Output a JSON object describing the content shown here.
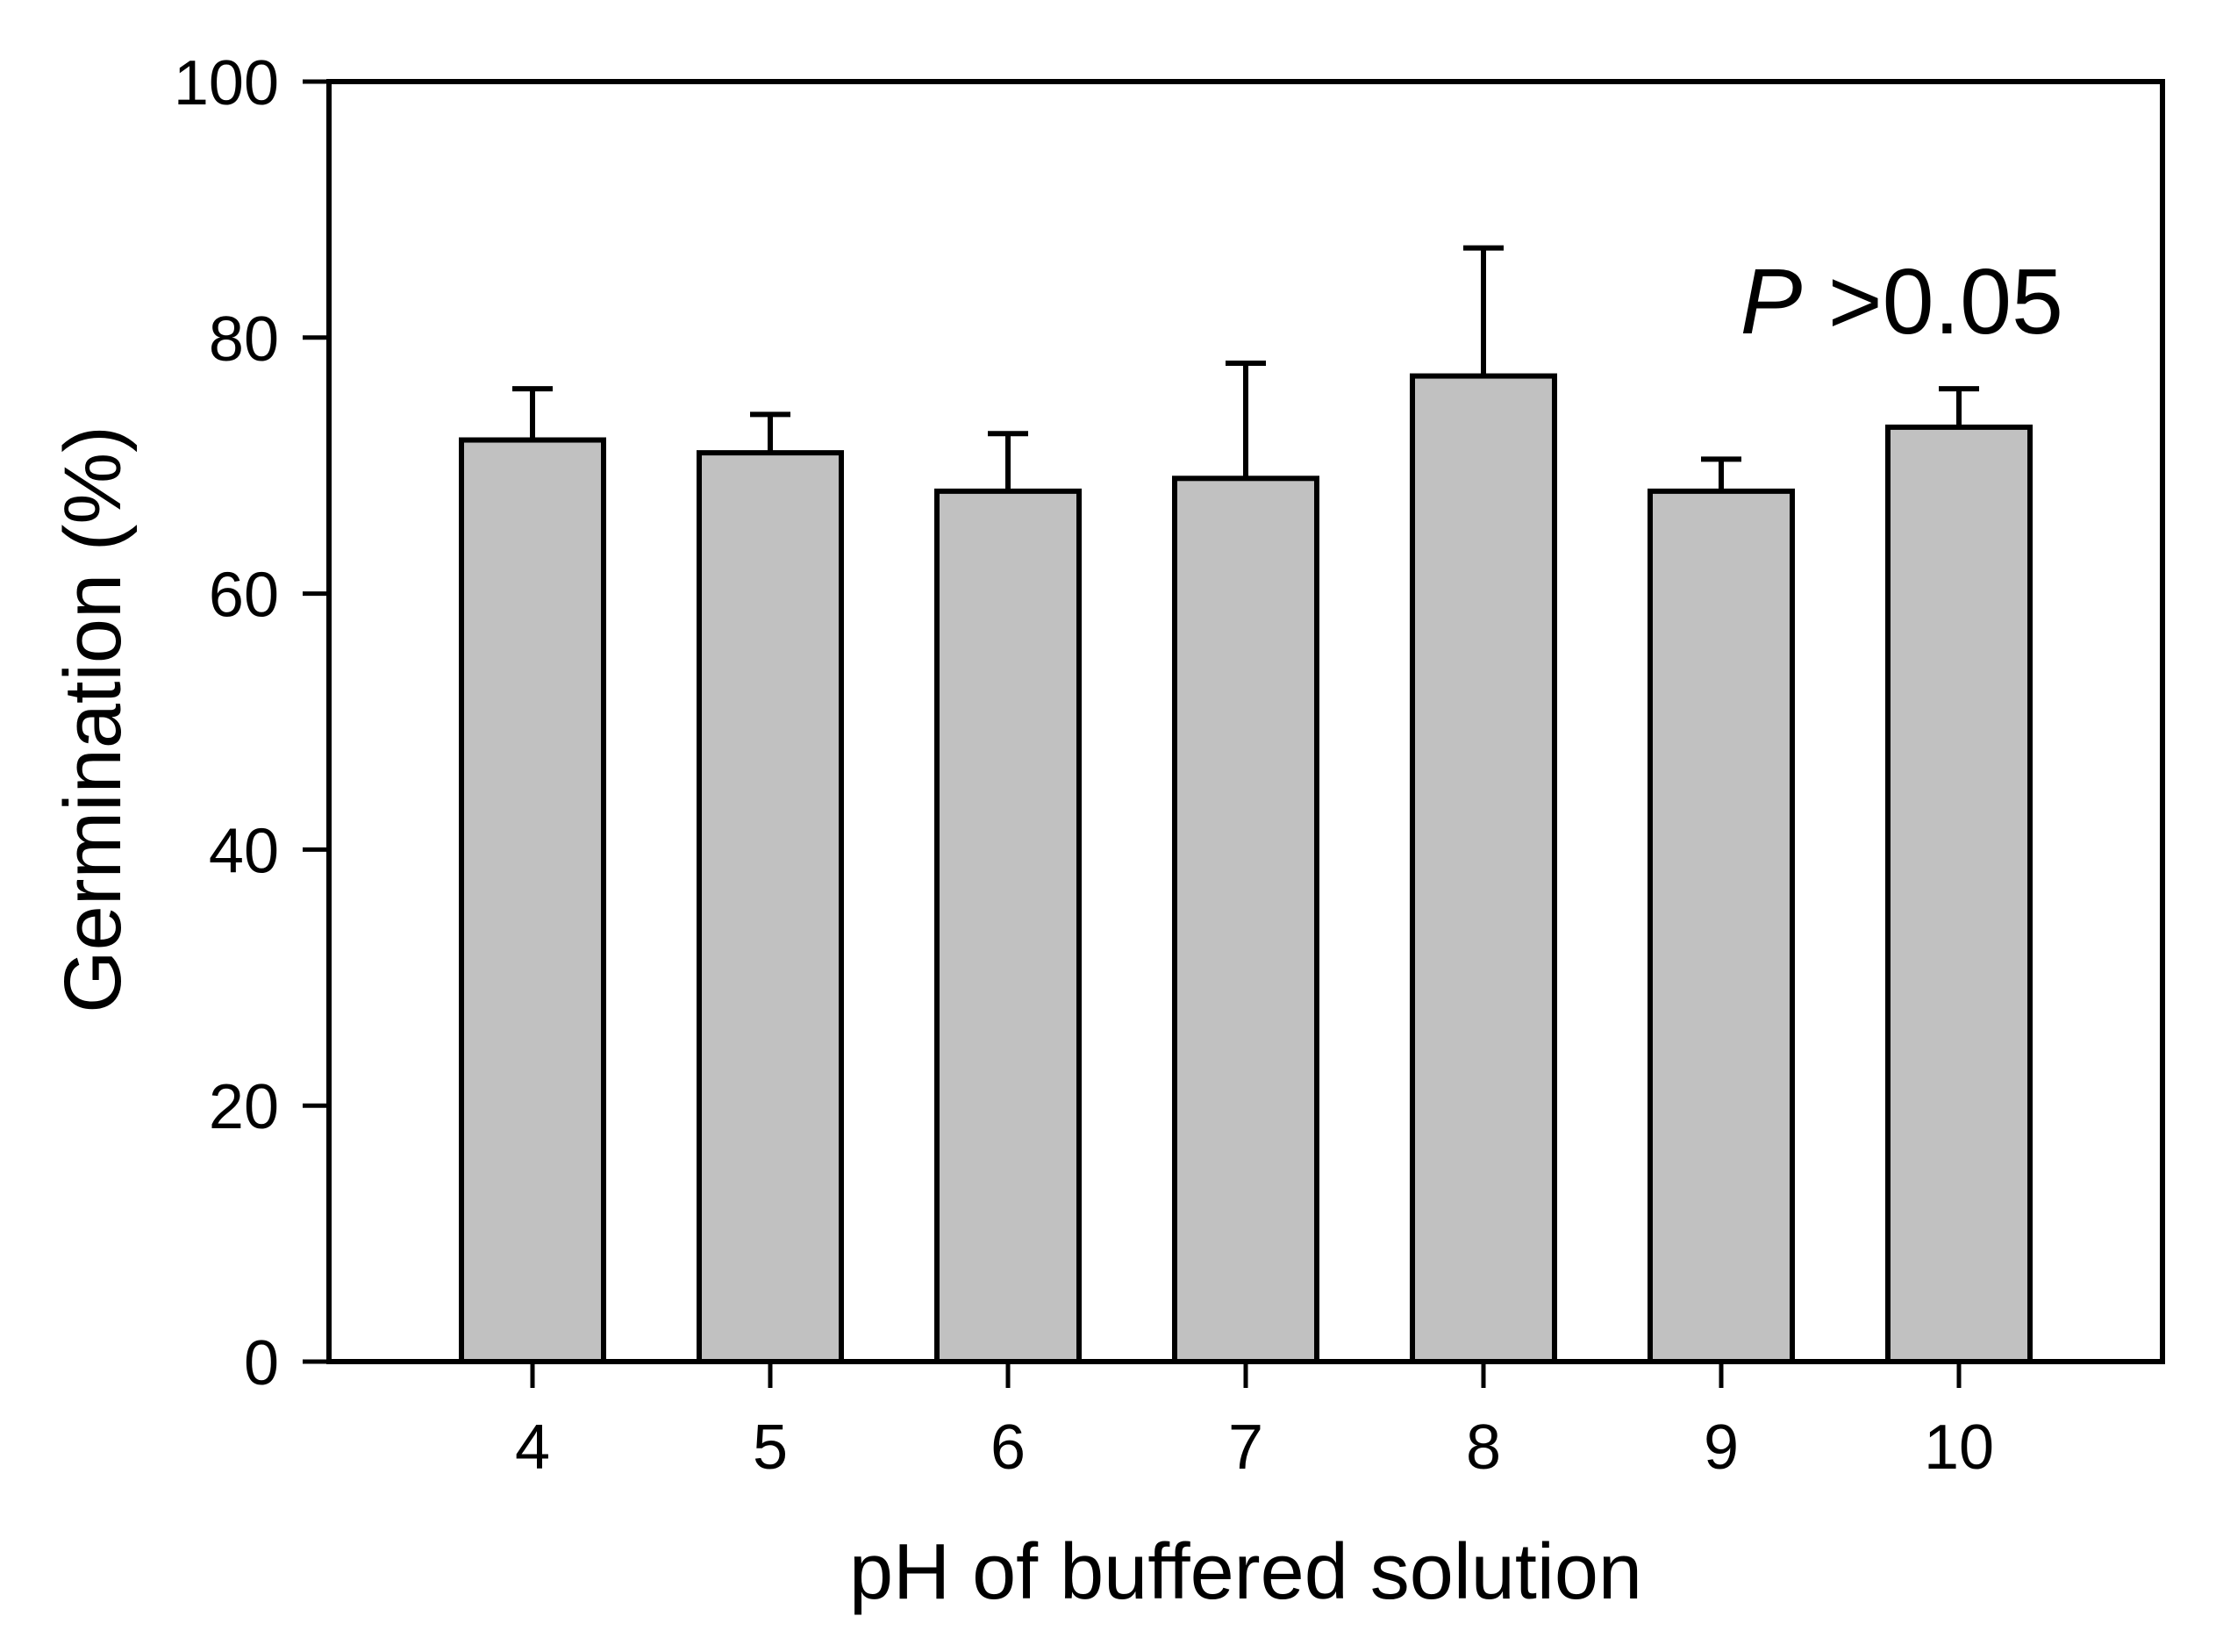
{
  "chart_data": {
    "type": "bar",
    "title": "",
    "xlabel": "pH of buffered solution",
    "ylabel": "Germination (%)",
    "categories": [
      "4",
      "5",
      "6",
      "7",
      "8",
      "9",
      "10"
    ],
    "values": [
      72,
      71,
      68,
      69,
      77,
      68,
      73
    ],
    "errors_plus": [
      4,
      3,
      4.5,
      9,
      10,
      2.5,
      3
    ],
    "ylim": [
      0,
      100
    ],
    "yticks": [
      0,
      20,
      40,
      60,
      80,
      100
    ],
    "grid": false,
    "legend_position": "none",
    "bar_color": "#c1c1c1",
    "bar_edge_color": "#000000",
    "axis_color": "#000000",
    "annotation": {
      "text_italic": "P",
      "text_regular": " >0.05"
    }
  }
}
